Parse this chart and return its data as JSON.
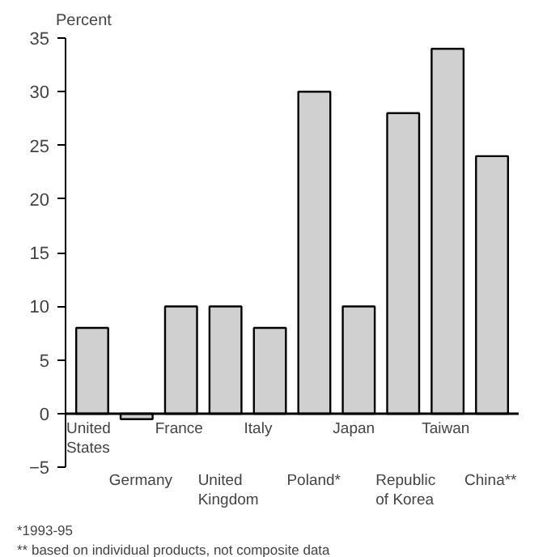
{
  "chart_data": {
    "type": "bar",
    "ylabel": "Percent",
    "categories": [
      "United\nStates",
      "Germany",
      "France",
      "United\nKingdom",
      "Italy",
      "Poland*",
      "Japan",
      "Republic\nof Korea",
      "Taiwan",
      "China**"
    ],
    "values": [
      8,
      -0.5,
      10,
      10,
      8,
      30,
      10,
      28,
      34,
      24
    ],
    "color": "#d0d0d0",
    "ylim": [
      -5,
      35
    ],
    "yticks": [
      -5,
      0,
      5,
      10,
      15,
      20,
      25,
      30,
      35
    ],
    "grid": false,
    "annotations": [
      "*1993-95",
      "** based on individual products, not composite data"
    ]
  }
}
